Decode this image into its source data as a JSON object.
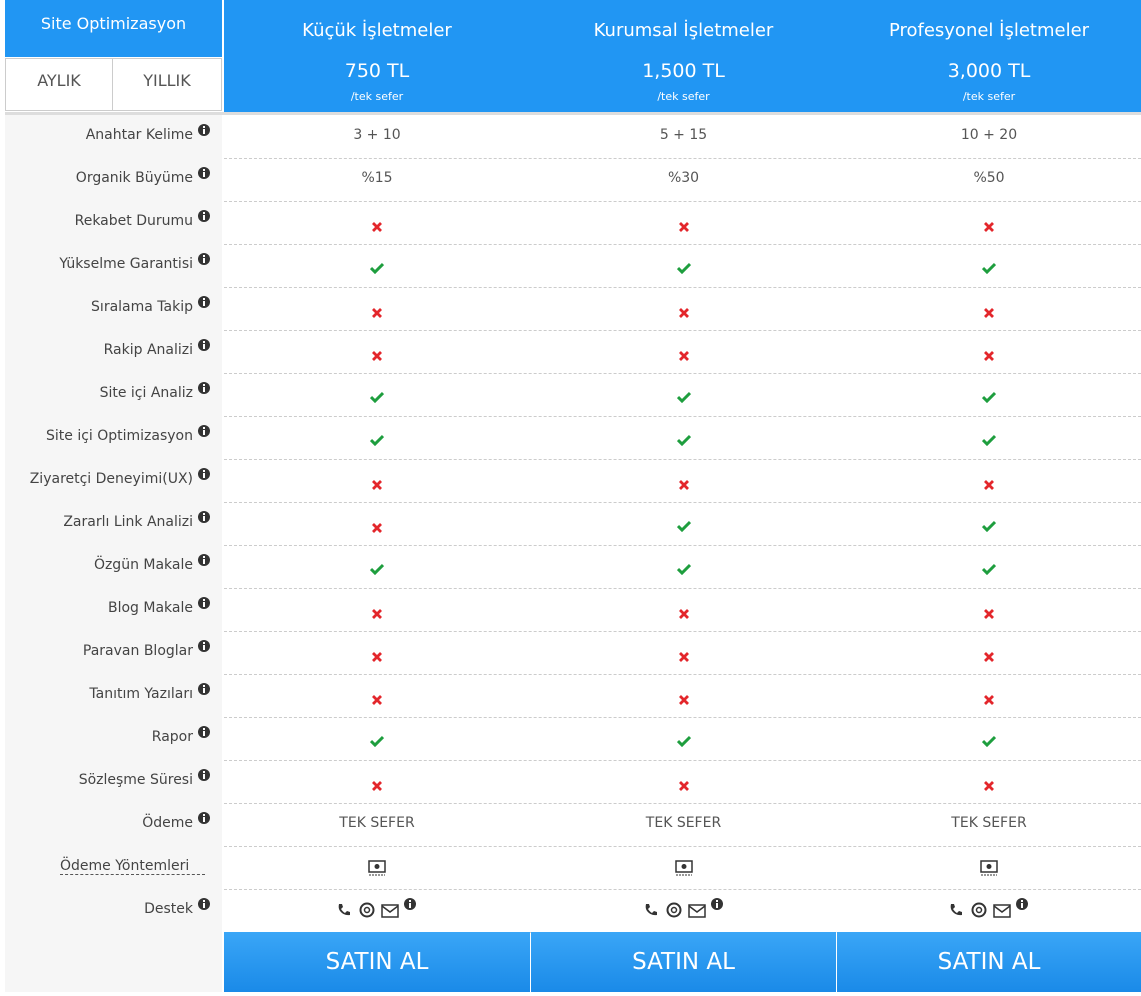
{
  "header": {
    "title": "Site Optimizasyon",
    "tabs": [
      "AYLIK",
      "YILLIK"
    ]
  },
  "plans": [
    {
      "name": "Küçük İşletmeler",
      "price": "750 TL",
      "note": "/tek sefer"
    },
    {
      "name": "Kurumsal İşletmeler",
      "price": "1,500 TL",
      "note": "/tek sefer"
    },
    {
      "name": "Profesyonel İşletmeler",
      "price": "3,000 TL",
      "note": "/tek sefer"
    }
  ],
  "features": [
    {
      "label": "Anahtar Kelime",
      "values": [
        "3 + 10",
        "5 + 15",
        "10 + 20"
      ]
    },
    {
      "label": "Organik Büyüme",
      "values": [
        "%15",
        "%30",
        "%50"
      ]
    },
    {
      "label": "Rekabet Durumu",
      "values": [
        false,
        false,
        false
      ]
    },
    {
      "label": "Yükselme Garantisi",
      "values": [
        true,
        true,
        true
      ]
    },
    {
      "label": "Sıralama Takip",
      "values": [
        false,
        false,
        false
      ]
    },
    {
      "label": "Rakip Analizi",
      "values": [
        false,
        false,
        false
      ]
    },
    {
      "label": "Site içi Analiz",
      "values": [
        true,
        true,
        true
      ]
    },
    {
      "label": "Site içi Optimizasyon",
      "values": [
        true,
        true,
        true
      ]
    },
    {
      "label": "Ziyaretçi Deneyimi(UX)",
      "values": [
        false,
        false,
        false
      ]
    },
    {
      "label": "Zararlı Link Analizi",
      "values": [
        false,
        true,
        true
      ]
    },
    {
      "label": "Özgün Makale",
      "values": [
        true,
        true,
        true
      ]
    },
    {
      "label": "Blog Makale",
      "values": [
        false,
        false,
        false
      ]
    },
    {
      "label": "Paravan Bloglar",
      "values": [
        false,
        false,
        false
      ]
    },
    {
      "label": "Tanıtım Yazıları",
      "values": [
        false,
        false,
        false
      ]
    },
    {
      "label": "Rapor",
      "values": [
        true,
        true,
        true
      ]
    },
    {
      "label": "Sözleşme Süresi",
      "values": [
        false,
        false,
        false
      ]
    },
    {
      "label": "Ödeme",
      "values": [
        "TEK SEFER",
        "TEK SEFER",
        "TEK SEFER"
      ]
    }
  ],
  "payment_row": {
    "label": "Ödeme Yöntemleri"
  },
  "support_row": {
    "label": "Destek"
  },
  "button": "SATIN AL"
}
